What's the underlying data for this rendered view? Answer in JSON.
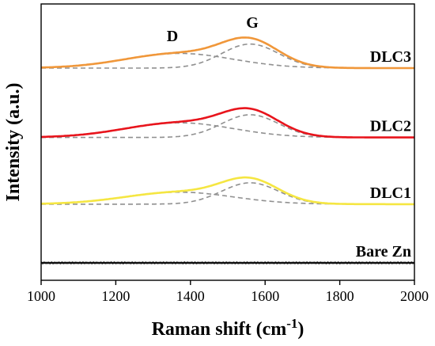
{
  "chart_data": {
    "type": "line",
    "title": "",
    "xlabel": "Raman shift (cm",
    "xlabel_superscript": "-1",
    "xlabel_suffix": ")",
    "ylabel": "Intensity (a.u.)",
    "xlim": [
      1000,
      2000
    ],
    "xticks": [
      1000,
      1200,
      1400,
      1600,
      1800,
      2000
    ],
    "ylim": [
      0,
      10
    ],
    "grid": false,
    "y_ticks_shown": false,
    "annotations": [
      {
        "text": "D",
        "x": 1360,
        "y": 9.6
      },
      {
        "text": "G",
        "x": 1560,
        "y": 10.0
      }
    ],
    "series": [
      {
        "name": "DLC3",
        "color": "#f0973a",
        "baseline": 7.3,
        "fit_color": "#909090",
        "G_band": {
          "center": 1560,
          "fwhm": 180,
          "height": 0.9
        },
        "D_band": {
          "center": 1370,
          "fwhm": 340,
          "height": 0.55
        }
      },
      {
        "name": "DLC2",
        "color": "#e8141c",
        "baseline": 4.7,
        "fit_color": "#909090",
        "G_band": {
          "center": 1560,
          "fwhm": 180,
          "height": 0.85
        },
        "D_band": {
          "center": 1370,
          "fwhm": 340,
          "height": 0.55
        }
      },
      {
        "name": "DLC1",
        "color": "#f5e642",
        "baseline": 2.2,
        "fit_color": "#909090",
        "G_band": {
          "center": 1560,
          "fwhm": 180,
          "height": 0.8
        },
        "D_band": {
          "center": 1370,
          "fwhm": 340,
          "height": 0.45
        }
      },
      {
        "name": "Bare Zn",
        "color": "#111111",
        "baseline": 0.0,
        "fit_color": null,
        "G_band": null,
        "D_band": null
      }
    ]
  }
}
